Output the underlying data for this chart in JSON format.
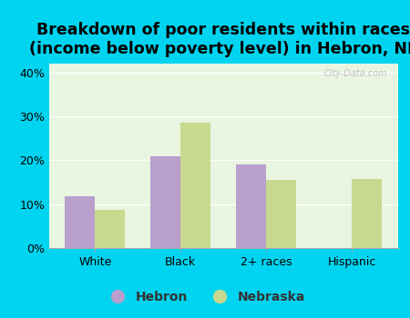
{
  "title": "Breakdown of poor residents within races\n(income below poverty level) in Hebron, NE",
  "categories": [
    "White",
    "Black",
    "2+ races",
    "Hispanic"
  ],
  "hebron_values": [
    11.8,
    21.0,
    19.0,
    0.0
  ],
  "nebraska_values": [
    8.7,
    28.5,
    15.5,
    15.8
  ],
  "hebron_color": "#b89fcc",
  "nebraska_color": "#c8d98f",
  "bg_outer": "#00d4f0",
  "bg_plot": "#e8f5e0",
  "ylim": [
    0,
    42
  ],
  "yticks": [
    0,
    10,
    20,
    30,
    40
  ],
  "ytick_labels": [
    "0%",
    "10%",
    "20%",
    "30%",
    "40%"
  ],
  "title_fontsize": 12.5,
  "bar_width": 0.35,
  "legend_labels": [
    "Hebron",
    "Nebraska"
  ]
}
